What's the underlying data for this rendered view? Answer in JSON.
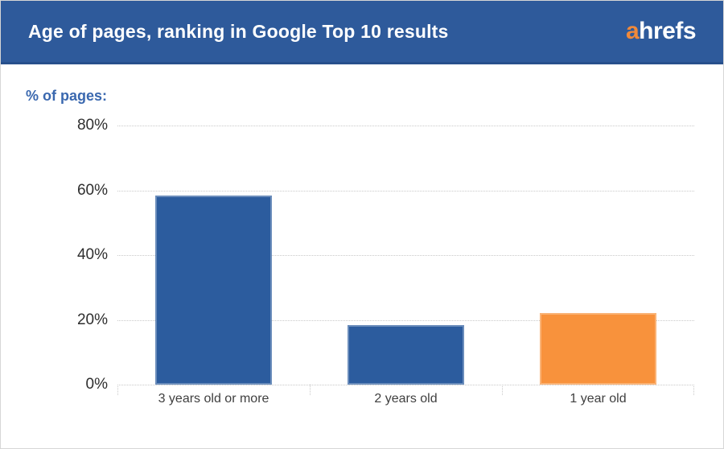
{
  "header": {
    "title": "Age of pages, ranking in Google Top 10 results",
    "logo_prefix": "a",
    "logo_rest": "hrefs"
  },
  "chart_data": {
    "type": "bar",
    "title": "Age of pages, ranking in Google Top 10 results",
    "ylabel": "% of pages:",
    "xlabel": "",
    "categories": [
      "3 years old or more",
      "2 years old",
      "1 year old"
    ],
    "values": [
      58.5,
      18.5,
      22
    ],
    "bar_colors": [
      "#2c5c9e",
      "#2c5c9e",
      "#f8923c"
    ],
    "ylim": [
      0,
      80
    ],
    "ytick_values": [
      80,
      60,
      40,
      20,
      0
    ],
    "ytick_labels": [
      "80%",
      "60%",
      "40%",
      "20%",
      "0%"
    ],
    "grid": "horizontal-dotted",
    "legend": "none"
  },
  "colors": {
    "header_background": "#2e5a9b",
    "header_border": "#27508c",
    "logo_accent": "#f0893a",
    "axis_title_blue": "#3a68af",
    "bar_blue": "#2c5c9e",
    "bar_orange": "#f8923c",
    "gridline_gray": "#c9c9c9"
  }
}
